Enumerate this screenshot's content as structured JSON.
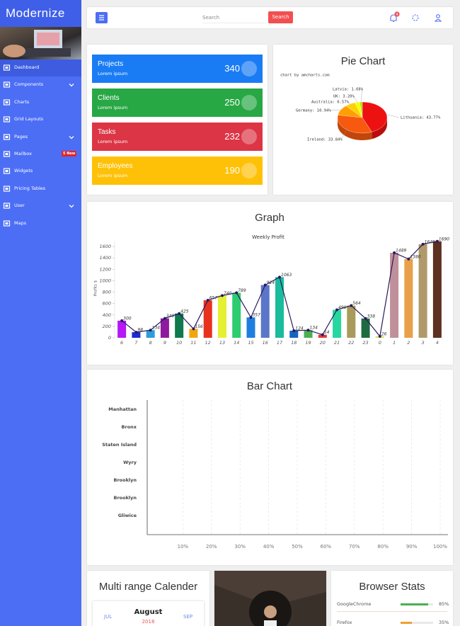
{
  "sidebar": {
    "brand": "Modernize",
    "menu": [
      {
        "label": "Dashboard",
        "active": true
      },
      {
        "label": "Components",
        "submenu": true
      },
      {
        "label": "Charts"
      },
      {
        "label": "Grid Layouts"
      },
      {
        "label": "Pages",
        "submenu": true
      },
      {
        "label": "Mailbox",
        "badge": "5 New"
      },
      {
        "label": "Widgets"
      },
      {
        "label": "Pricing Tables"
      },
      {
        "label": "User",
        "submenu": true
      },
      {
        "label": "Maps"
      }
    ]
  },
  "topbar": {
    "search_placeholder": "Search",
    "search_button": "Search",
    "notification_count": 4
  },
  "stats": [
    {
      "title": "Projects",
      "subtitle": "Lorem ipsum",
      "value": 340,
      "color": "#1a7cf5"
    },
    {
      "title": "Clients",
      "subtitle": "Lorem ipsum",
      "value": 250,
      "color": "#28a745"
    },
    {
      "title": "Tasks",
      "subtitle": "Lorem ipsum",
      "value": 232,
      "color": "#dc3545"
    },
    {
      "title": "Employees",
      "subtitle": "Lorem ipsum",
      "value": 190,
      "color": "#ffc107"
    }
  ],
  "pie_chart": {
    "type": "pie",
    "title": "Pie Chart",
    "credit": "chart by amcharts.com",
    "categories": [
      "Lithuania",
      "Ireland",
      "Germany",
      "Australia",
      "UK",
      "Latvia"
    ],
    "values": [
      43.77,
      33.84,
      10.94,
      6.57,
      3.2,
      1.68
    ],
    "value_labels": [
      "Lithuania: 43.77%",
      "Ireland: 33.84%",
      "Germany: 10.94%",
      "Australia: 6.57%",
      "UK: 3.20%",
      "Latvia: 1.68%"
    ],
    "colors": [
      "#ee1111",
      "#f75a0e",
      "#ff9e01",
      "#fcd202",
      "#f8ff01",
      "#b0de09"
    ]
  },
  "graph": {
    "type": "bar",
    "title": "Graph",
    "subtitle": "Weekly Profit",
    "y_label": "Profits $",
    "categories": [
      "6",
      "7",
      "8",
      "9",
      "10",
      "11",
      "12",
      "13",
      "14",
      "15",
      "16",
      "17",
      "18",
      "19",
      "20",
      "21",
      "22",
      "23",
      "0",
      "1",
      "2",
      "3",
      "4"
    ],
    "values": [
      300,
      98,
      134,
      340,
      425,
      156,
      657,
      740,
      789,
      357,
      924,
      1063,
      124,
      134,
      54,
      490,
      564,
      338,
      26,
      1489,
      1380,
      1640,
      1690
    ],
    "colors": [
      "#b517f5",
      "#1c2bd1",
      "#2d9cdb",
      "#8e1b9e",
      "#0f7a4d",
      "#f2a60d",
      "#e8321e",
      "#e4f032",
      "#2ecc71",
      "#1e7ee0",
      "#5b76c9",
      "#1abc9c",
      "#1565c0",
      "#4caf50",
      "#e53935",
      "#26d7a0",
      "#a89b5c",
      "#1e6b40",
      "#d4e157",
      "#c0909a",
      "#e8a04a",
      "#b09a6a",
      "#5d3020"
    ],
    "line_color": "#2a1a5e",
    "ylim": [
      0,
      1700
    ],
    "yticks": [
      0,
      200,
      400,
      600,
      800,
      1000,
      1200,
      1400,
      1600
    ]
  },
  "bar_chart": {
    "type": "bar",
    "title": "Bar Chart",
    "categories": [
      "Manhattan",
      "Bronx",
      "Staten Island",
      "Wyry",
      "Brooklyn",
      "Brooklyn",
      "Gliwice"
    ],
    "xlim": [
      0,
      100
    ],
    "xticks": [
      {
        "value": 10,
        "label": "10%"
      },
      {
        "value": 20,
        "label": "20%"
      },
      {
        "value": 30,
        "label": "30%"
      },
      {
        "value": 40,
        "label": "40%"
      },
      {
        "value": 50,
        "label": "50%"
      },
      {
        "value": 60,
        "label": "60%"
      },
      {
        "value": 70,
        "label": "70%"
      },
      {
        "value": 80,
        "label": "80%"
      },
      {
        "value": 90,
        "label": "90%"
      },
      {
        "value": 100,
        "label": "100%"
      }
    ],
    "grid": true
  },
  "calendar": {
    "title": "Multi range Calender",
    "month": "August",
    "year": "2018",
    "prev": "JUL",
    "next": "SEP"
  },
  "browser_stats": {
    "title": "Browser Stats",
    "items": [
      {
        "name": "GoogleChrome",
        "value": 85,
        "label": "85%",
        "color": "#4caf50"
      },
      {
        "name": "Firefox",
        "value": 35,
        "label": "35%",
        "color": "#f0a030"
      }
    ]
  }
}
